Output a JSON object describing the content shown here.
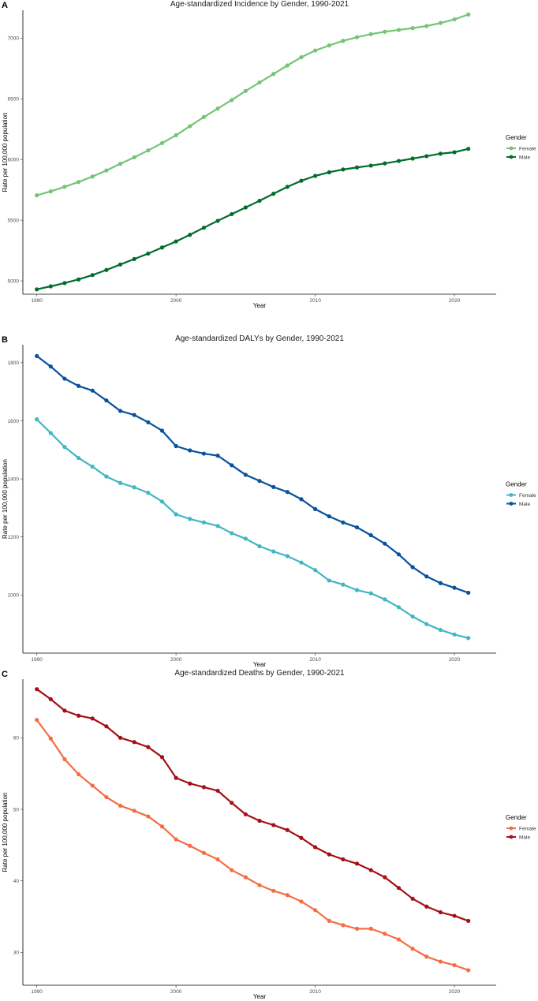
{
  "chart_data": [
    {
      "panel": "A",
      "type": "line",
      "title": "Age-standardized Incidence by Gender, 1990-2021",
      "xlabel": "Year",
      "ylabel": "Rate per 100,000 population",
      "xlim": [
        1989,
        2023
      ],
      "ylim": [
        4890,
        7230
      ],
      "xticks": [
        1990,
        2000,
        2010,
        2020
      ],
      "yticks": [
        5000,
        5500,
        6000,
        6500,
        7000
      ],
      "legend_title": "Gender",
      "x": [
        1990,
        1991,
        1992,
        1993,
        1994,
        1995,
        1996,
        1997,
        1998,
        1999,
        2000,
        2001,
        2002,
        2003,
        2004,
        2005,
        2006,
        2007,
        2008,
        2009,
        2010,
        2011,
        2012,
        2013,
        2014,
        2015,
        2016,
        2017,
        2018,
        2019,
        2020,
        2021
      ],
      "series": [
        {
          "name": "Female",
          "color": "#74c476",
          "values": [
            5705,
            5738,
            5775,
            5815,
            5860,
            5910,
            5965,
            6018,
            6075,
            6135,
            6200,
            6275,
            6350,
            6420,
            6490,
            6565,
            6635,
            6705,
            6775,
            6843,
            6898,
            6940,
            6978,
            7008,
            7033,
            7053,
            7068,
            7083,
            7100,
            7125,
            7155,
            7195
          ]
        },
        {
          "name": "Male",
          "color": "#006d2c",
          "values": [
            4930,
            4955,
            4982,
            5012,
            5048,
            5090,
            5135,
            5180,
            5225,
            5275,
            5325,
            5380,
            5438,
            5495,
            5550,
            5605,
            5660,
            5718,
            5775,
            5825,
            5865,
            5895,
            5918,
            5935,
            5950,
            5968,
            5988,
            6008,
            6028,
            6048,
            6060,
            6088
          ]
        }
      ]
    },
    {
      "panel": "B",
      "type": "line",
      "title": "Age-standardized DALYs by Gender, 1990-2021",
      "xlabel": "Year",
      "ylabel": "Rate per 100,000 population",
      "xlim": [
        1989,
        2023
      ],
      "ylim": [
        800,
        1862
      ],
      "xticks": [
        1990,
        2000,
        2010,
        2020
      ],
      "yticks": [
        1000,
        1200,
        1400,
        1600,
        1800
      ],
      "legend_title": "Gender",
      "x": [
        1990,
        1991,
        1992,
        1993,
        1994,
        1995,
        1996,
        1997,
        1998,
        1999,
        2000,
        2001,
        2002,
        2003,
        2004,
        2005,
        2006,
        2007,
        2008,
        2009,
        2010,
        2011,
        2012,
        2013,
        2014,
        2015,
        2016,
        2017,
        2018,
        2019,
        2020,
        2021
      ],
      "series": [
        {
          "name": "Female",
          "color": "#41b6c4",
          "values": [
            1605,
            1558,
            1510,
            1472,
            1442,
            1408,
            1386,
            1371,
            1352,
            1322,
            1278,
            1262,
            1250,
            1238,
            1213,
            1194,
            1168,
            1150,
            1134,
            1112,
            1086,
            1050,
            1036,
            1017,
            1006,
            985,
            958,
            926,
            900,
            880,
            864,
            852
          ]
        },
        {
          "name": "Male",
          "color": "#08519c",
          "values": [
            1823,
            1787,
            1745,
            1720,
            1704,
            1670,
            1634,
            1620,
            1595,
            1566,
            1513,
            1498,
            1487,
            1480,
            1447,
            1414,
            1393,
            1372,
            1355,
            1330,
            1296,
            1271,
            1250,
            1233,
            1206,
            1177,
            1140,
            1096,
            1064,
            1041,
            1025,
            1008
          ]
        }
      ]
    },
    {
      "panel": "C",
      "type": "line",
      "title": "Age-standardized Deaths by Gender, 1990-2021",
      "xlabel": "Year",
      "ylabel": "Rate per 100,000 population",
      "xlim": [
        1989,
        2023
      ],
      "ylim": [
        25.4,
        68.2
      ],
      "xticks": [
        1990,
        2000,
        2010,
        2020
      ],
      "yticks": [
        30,
        40,
        50,
        60
      ],
      "legend_title": "Gender",
      "x": [
        1990,
        1991,
        1992,
        1993,
        1994,
        1995,
        1996,
        1997,
        1998,
        1999,
        2000,
        2001,
        2002,
        2003,
        2004,
        2005,
        2006,
        2007,
        2008,
        2009,
        2010,
        2011,
        2012,
        2013,
        2014,
        2015,
        2016,
        2017,
        2018,
        2019,
        2020,
        2021
      ],
      "series": [
        {
          "name": "Female",
          "color": "#f46d43",
          "values": [
            62.5,
            59.9,
            57.0,
            54.9,
            53.3,
            51.7,
            50.5,
            49.8,
            49.0,
            47.6,
            45.8,
            44.9,
            43.9,
            43.0,
            41.5,
            40.5,
            39.4,
            38.6,
            38.0,
            37.1,
            35.9,
            34.4,
            33.8,
            33.3,
            33.3,
            32.6,
            31.8,
            30.5,
            29.4,
            28.7,
            28.2,
            27.5
          ]
        },
        {
          "name": "Male",
          "color": "#a50f15",
          "values": [
            66.8,
            65.4,
            63.8,
            63.1,
            62.7,
            61.6,
            60.0,
            59.4,
            58.7,
            57.3,
            54.4,
            53.6,
            53.1,
            52.6,
            50.9,
            49.3,
            48.4,
            47.8,
            47.1,
            46.0,
            44.7,
            43.7,
            43.0,
            42.4,
            41.5,
            40.5,
            39.0,
            37.5,
            36.4,
            35.6,
            35.1,
            34.4
          ]
        }
      ]
    }
  ]
}
